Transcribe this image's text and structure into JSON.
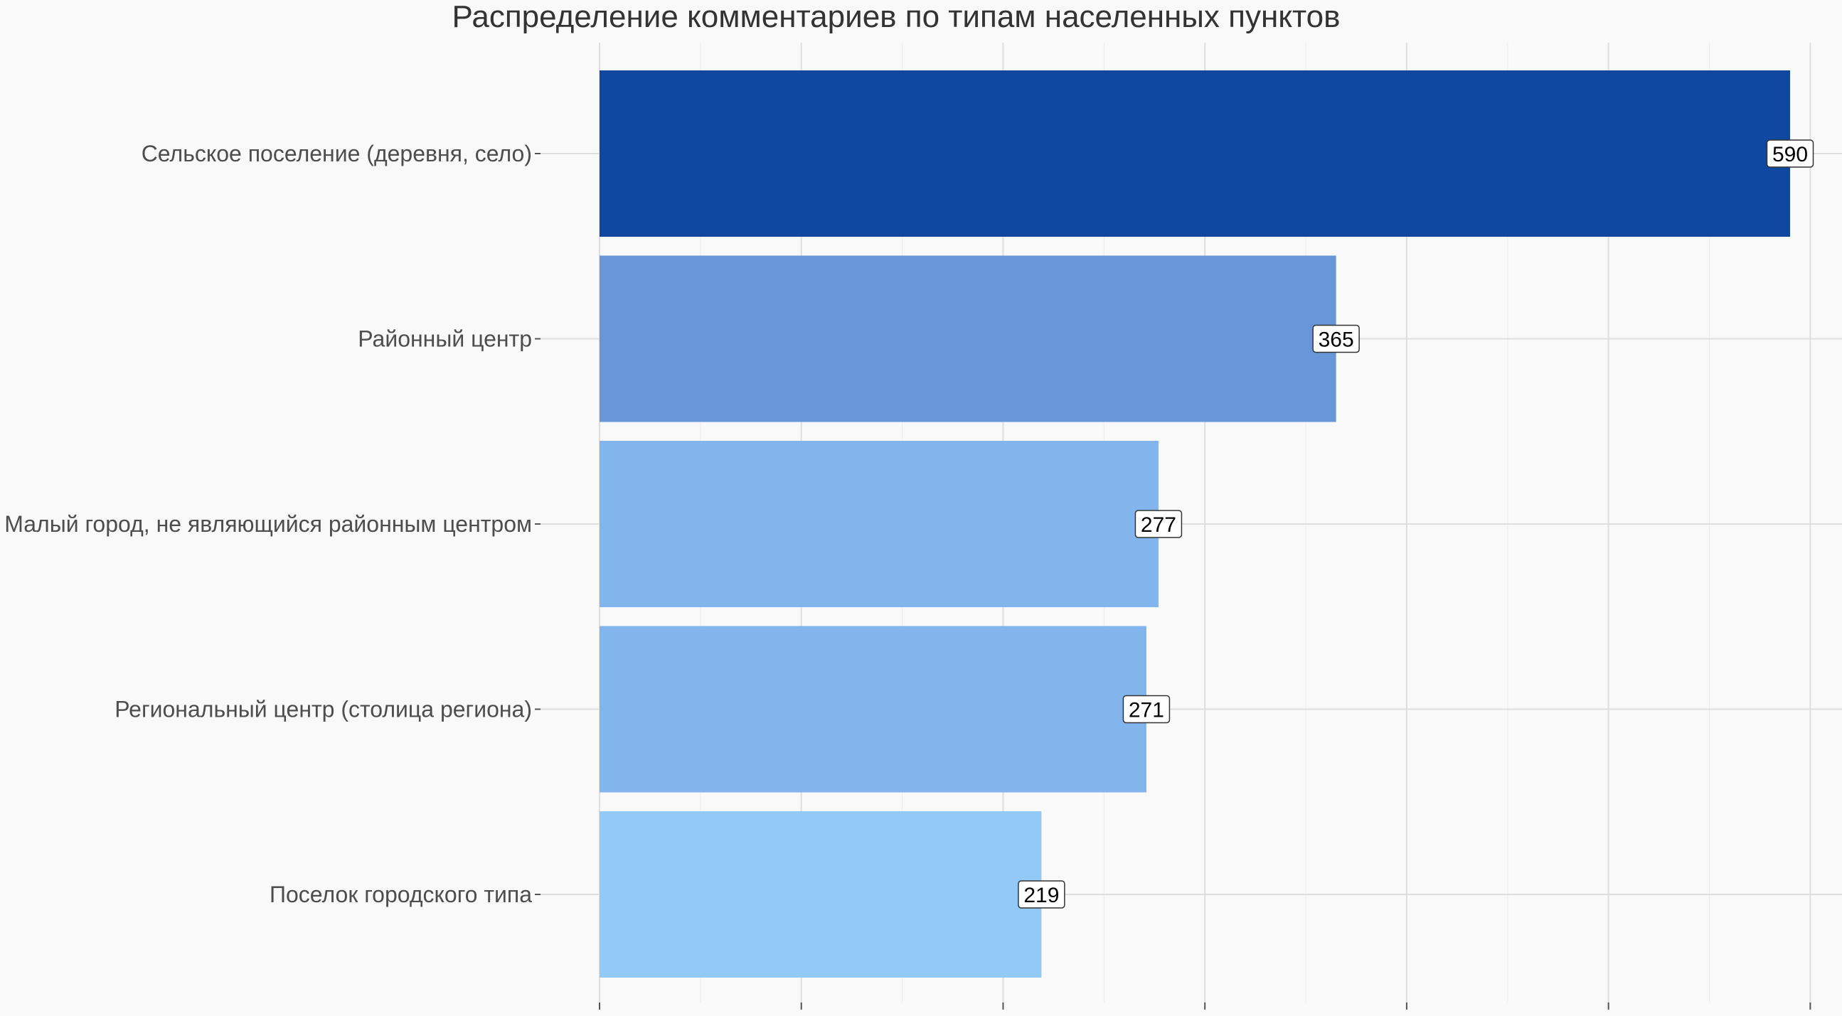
{
  "chart_data": {
    "type": "bar",
    "orientation": "horizontal",
    "title": "Распределение комментариев по типам населенных пунктов",
    "xlabel": "",
    "ylabel": "",
    "categories": [
      "Сельское поселение (деревня, село)",
      "Районный центр",
      "Малый город, не являющийся районным центром",
      "Региональный центр (столица региона)",
      "Поселок городского типа"
    ],
    "values": [
      590,
      365,
      277,
      271,
      219
    ],
    "bar_colors": [
      "#0f47a1",
      "#6996d8",
      "#82b5eb",
      "#82b5eb",
      "#92c9f7"
    ],
    "xlim": [
      0,
      600
    ],
    "grid": true,
    "legend": "none",
    "value_labels": true
  }
}
